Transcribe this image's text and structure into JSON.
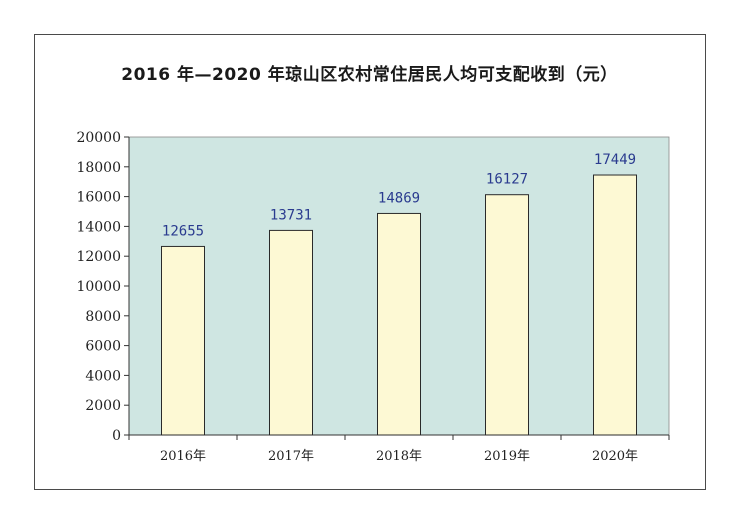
{
  "chart_data": {
    "type": "bar",
    "title": "2016 年—2020 年琼山区农村常住居民人均可支配收到（元）",
    "categories": [
      "2016年",
      "2017年",
      "2018年",
      "2019年",
      "2020年"
    ],
    "values": [
      12655,
      13731,
      14869,
      16127,
      17449
    ],
    "ylim": [
      0,
      20000
    ],
    "yticks": [
      0,
      2000,
      4000,
      6000,
      8000,
      10000,
      12000,
      14000,
      16000,
      18000,
      20000
    ],
    "xlabel": "",
    "ylabel": "",
    "grid": false,
    "legend": "none",
    "colors": {
      "plot_background": "#cfe6e2",
      "bar_fill": "#fdf9d4",
      "bar_stroke": "#2a2a2a",
      "data_label": "#2a3b8f"
    }
  }
}
